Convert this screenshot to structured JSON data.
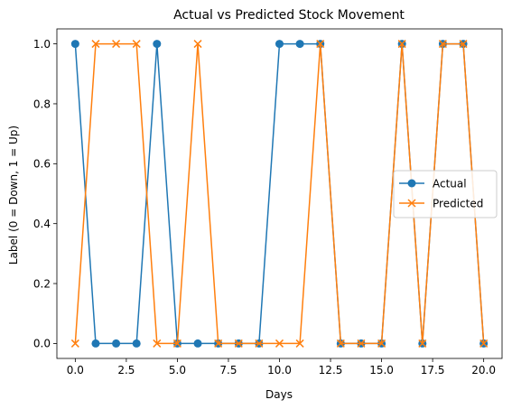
{
  "chart_data": {
    "type": "line",
    "title": "Actual vs Predicted Stock Movement",
    "xlabel": "Days",
    "ylabel": "Label (0 = Down, 1 = Up)",
    "xlim": [
      -0.9,
      20.9
    ],
    "ylim": [
      -0.05,
      1.05
    ],
    "xticks": [
      0,
      2.5,
      5,
      7.5,
      10,
      12.5,
      15,
      17.5,
      20
    ],
    "xtick_labels": [
      "0.0",
      "2.5",
      "5.0",
      "7.5",
      "10.0",
      "12.5",
      "15.0",
      "17.5",
      "20.0"
    ],
    "yticks": [
      0,
      0.2,
      0.4,
      0.6,
      0.8,
      1.0
    ],
    "ytick_labels": [
      "0.0",
      "0.2",
      "0.4",
      "0.6",
      "0.8",
      "1.0"
    ],
    "grid": false,
    "legend_position": "center-right",
    "x": [
      0,
      1,
      2,
      3,
      4,
      5,
      6,
      7,
      8,
      9,
      10,
      11,
      12,
      13,
      14,
      15,
      16,
      17,
      18,
      19,
      20
    ],
    "series": [
      {
        "name": "Actual",
        "marker": "circle",
        "color": "#1f77b4",
        "values": [
          1,
          0,
          0,
          0,
          1,
          0,
          0,
          0,
          0,
          0,
          1,
          1,
          1,
          0,
          0,
          0,
          1,
          0,
          1,
          1,
          0
        ]
      },
      {
        "name": "Predicted",
        "marker": "x",
        "color": "#ff7f0e",
        "values": [
          0,
          1,
          1,
          1,
          0,
          0,
          1,
          0,
          0,
          0,
          0,
          0,
          1,
          0,
          0,
          0,
          1,
          0,
          1,
          1,
          0
        ]
      }
    ]
  }
}
